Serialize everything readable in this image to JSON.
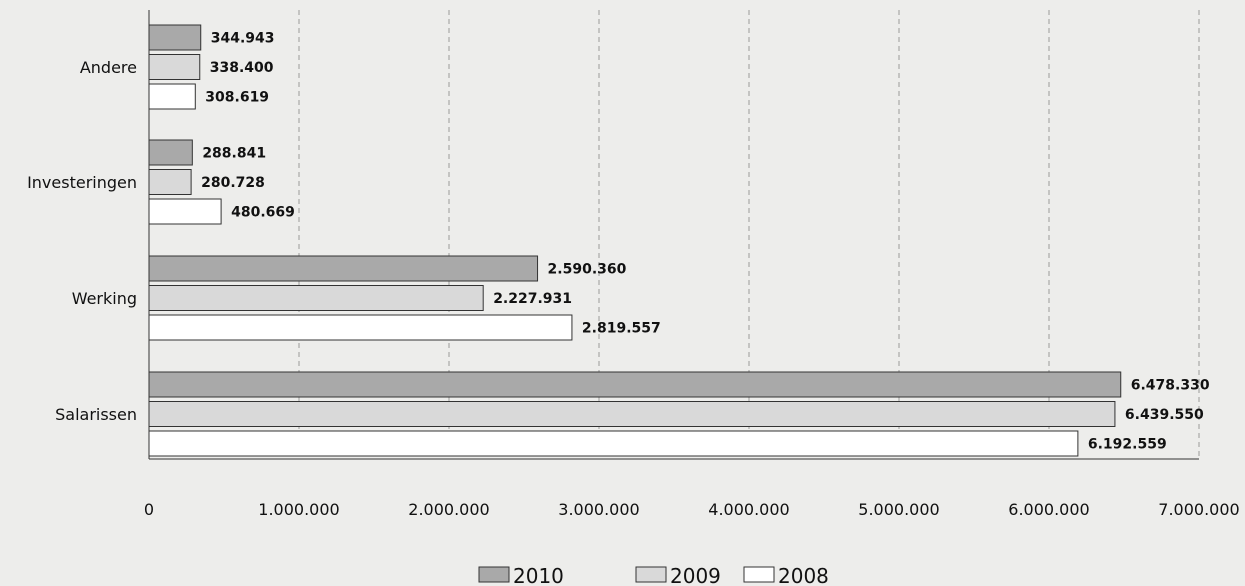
{
  "chart_data": {
    "type": "bar",
    "orientation": "horizontal",
    "categories": [
      "Andere",
      "Investeringen",
      "Werking",
      "Salarissen"
    ],
    "series": [
      {
        "name": "2010",
        "color": "#a9a9a9",
        "values": [
          344943,
          288841,
          2590360,
          6478330
        ],
        "labels": [
          "344.943",
          "288.841",
          "2.590.360",
          "6.478.330"
        ]
      },
      {
        "name": "2009",
        "color": "#d9d9d9",
        "values": [
          338400,
          280728,
          2227931,
          6439550
        ],
        "labels": [
          "338.400",
          "280.728",
          "2.227.931",
          "6.439.550"
        ]
      },
      {
        "name": "2008",
        "color": "#ffffff",
        "values": [
          308619,
          480669,
          2819557,
          6192559
        ],
        "labels": [
          "308.619",
          "480.669",
          "2.819.557",
          "6.192.559"
        ]
      }
    ],
    "xlim": [
      0,
      7000000
    ],
    "xticks": [
      0,
      1000000,
      2000000,
      3000000,
      4000000,
      5000000,
      6000000,
      7000000
    ],
    "xtick_labels": [
      "0",
      "1.000.000",
      "2.000.000",
      "3.000.000",
      "4.000.000",
      "5.000.000",
      "6.000.000",
      "7.000.000"
    ],
    "grid": "vertical-dashed",
    "legend_position": "bottom-center",
    "title": "",
    "xlabel": "",
    "ylabel": ""
  }
}
